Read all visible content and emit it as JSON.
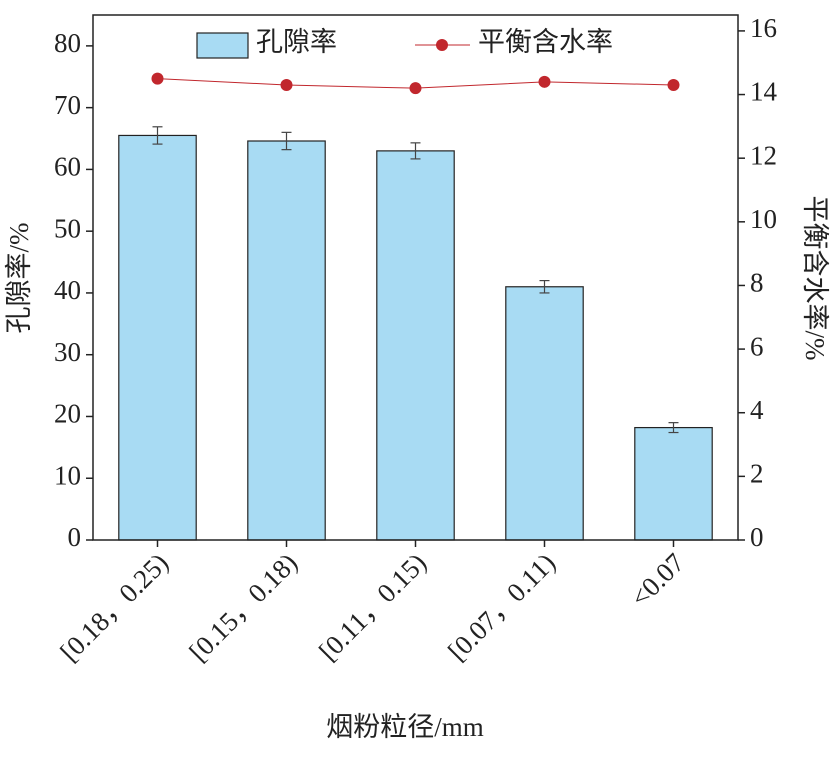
{
  "chart_data": {
    "type": "bar_line",
    "categories": [
      "[0.18，0.25)",
      "[0.15，0.18)",
      "[0.11，0.15)",
      "[0.07，0.11)",
      "<0.07"
    ],
    "series": [
      {
        "name": "孔隙率",
        "type": "bar",
        "color": "#a8dbf3",
        "values": [
          65.5,
          64.6,
          63.0,
          41.0,
          18.2
        ],
        "errors": [
          1.4,
          1.4,
          1.3,
          1.0,
          0.8
        ]
      },
      {
        "name": "平衡含水率",
        "type": "line",
        "axis": "y2",
        "color": "#c1272d",
        "values": [
          14.5,
          14.3,
          14.2,
          14.4,
          14.3
        ]
      }
    ],
    "xlabel": "烟粉粒径/mm",
    "ylabel": "孔隙率/%",
    "y2label": "平衡含水率/%",
    "ylim": [
      0,
      85
    ],
    "yticks": [
      0,
      10,
      20,
      30,
      40,
      50,
      60,
      70,
      80
    ],
    "y2lim": [
      0,
      16.5
    ],
    "y2ticks": [
      0,
      2,
      4,
      6,
      8,
      10,
      12,
      14,
      16
    ],
    "grid": false
  }
}
